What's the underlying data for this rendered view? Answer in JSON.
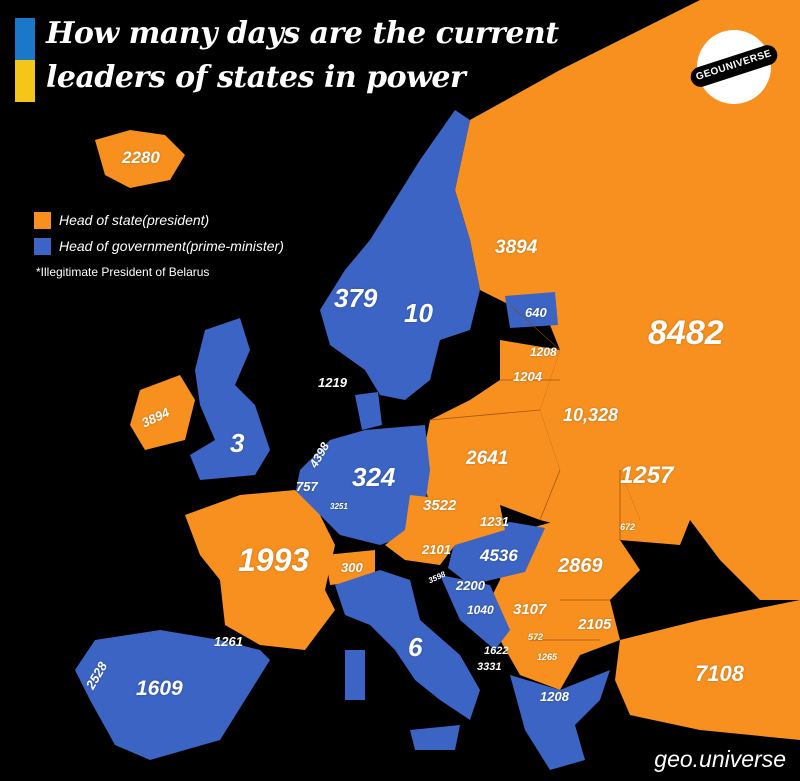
{
  "title": "How many days are the current leaders of states in power",
  "logo_text": "GEOUNIVERSE",
  "legend": {
    "items": [
      {
        "label": "Head of state(president)",
        "color": "#f7901e"
      },
      {
        "label": "Head of government(prime-minister)",
        "color": "#3b64c4"
      }
    ],
    "note": "*Illegitimate President of Belarus"
  },
  "colors": {
    "president": "#f7901e",
    "prime_minister": "#3b64c4",
    "background": "#000000"
  },
  "labels": [
    {
      "id": "iceland",
      "text": "2280"
    },
    {
      "id": "russia",
      "text": "8482"
    },
    {
      "id": "finland",
      "text": "3894"
    },
    {
      "id": "norway",
      "text": "379"
    },
    {
      "id": "sweden",
      "text": "10"
    },
    {
      "id": "estonia",
      "text": "640"
    },
    {
      "id": "latvia",
      "text": "1208"
    },
    {
      "id": "lithuania",
      "text": "1204"
    },
    {
      "id": "denmark",
      "text": "1219"
    },
    {
      "id": "belarus",
      "text": "10,328"
    },
    {
      "id": "ireland",
      "text": "3894"
    },
    {
      "id": "uk",
      "text": "3"
    },
    {
      "id": "netherlands",
      "text": "4398"
    },
    {
      "id": "belgium",
      "text": "757"
    },
    {
      "id": "luxembourg",
      "text": "3251"
    },
    {
      "id": "germany",
      "text": "324"
    },
    {
      "id": "poland",
      "text": "2641"
    },
    {
      "id": "ukraine",
      "text": "1257"
    },
    {
      "id": "czechia",
      "text": "3522"
    },
    {
      "id": "slovakia",
      "text": "1231"
    },
    {
      "id": "moldova",
      "text": "672"
    },
    {
      "id": "austria",
      "text": "2101"
    },
    {
      "id": "hungary",
      "text": "4536"
    },
    {
      "id": "romania",
      "text": "2869"
    },
    {
      "id": "france",
      "text": "1993"
    },
    {
      "id": "switzerland",
      "text": "300"
    },
    {
      "id": "slovenia",
      "text": "3598"
    },
    {
      "id": "croatia",
      "text": "2200"
    },
    {
      "id": "bosnia",
      "text": "1040"
    },
    {
      "id": "serbia",
      "text": "3107"
    },
    {
      "id": "bulgaria",
      "text": "2105"
    },
    {
      "id": "montenegro",
      "text": "572"
    },
    {
      "id": "kosovo",
      "text": "1265"
    },
    {
      "id": "albania",
      "text": "1622"
    },
    {
      "id": "north_macedonia",
      "text": "3331"
    },
    {
      "id": "italy",
      "text": "6"
    },
    {
      "id": "andorra",
      "text": "1261"
    },
    {
      "id": "portugal",
      "text": "2528"
    },
    {
      "id": "spain",
      "text": "1609"
    },
    {
      "id": "greece",
      "text": "1208"
    },
    {
      "id": "turkey",
      "text": "7108"
    }
  ],
  "footer": "geo.universe"
}
